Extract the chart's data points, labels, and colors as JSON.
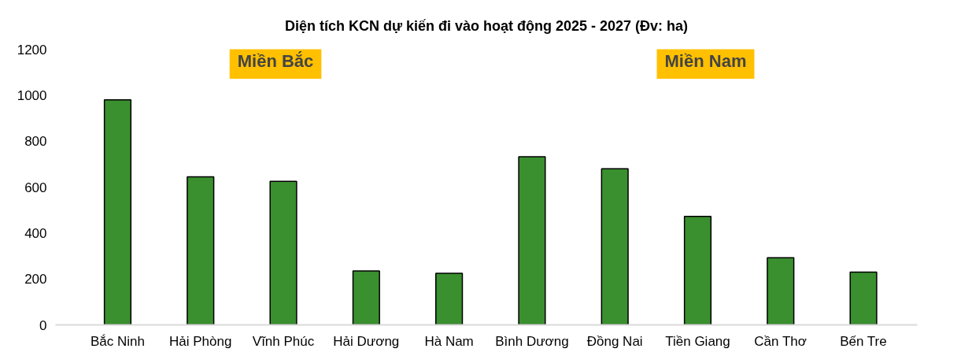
{
  "chart_data": {
    "type": "bar",
    "title": "Diện tích KCN dự kiến đi vào hoạt động 2025 - 2027 (Đv: ha)",
    "categories": [
      "Bắc Ninh",
      "Hải Phòng",
      "Vĩnh Phúc",
      "Hải Dương",
      "Hà Nam",
      "Bình Dương",
      "Đồng Nai",
      "Tiền Giang",
      "Cần Thơ",
      "Bến Tre"
    ],
    "values": [
      980,
      645,
      625,
      235,
      225,
      732,
      680,
      472,
      292,
      230
    ],
    "color": "#3a8f2f",
    "ylim": [
      0,
      1200
    ],
    "yticks": [
      0,
      200,
      400,
      600,
      800,
      1000,
      1200
    ],
    "annotations": [
      "Miền Bắc",
      "Miền Nam"
    ],
    "grid": false
  }
}
